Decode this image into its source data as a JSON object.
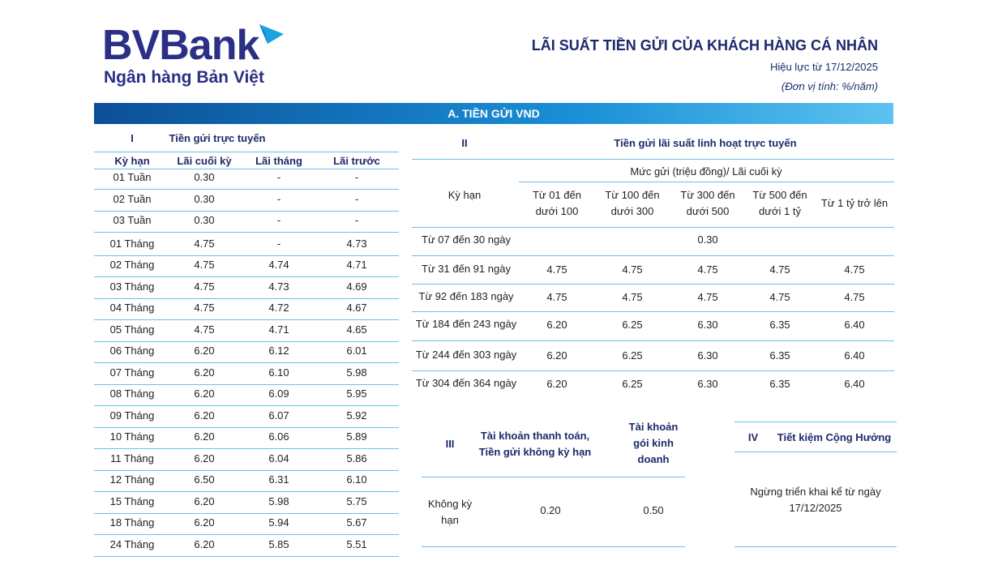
{
  "header": {
    "brand": "BVBank",
    "tagline": "Ngân hàng Bản Việt",
    "title": "LÃI SUẤT TIỀN GỬI CỦA KHÁCH HÀNG CÁ NHÂN",
    "effective": "Hiệu lực từ 17/12/2025",
    "unit": "(Đơn vị tính: %/năm)"
  },
  "section": "A. TIỀN GỬI VND",
  "table_1": {
    "number": "I",
    "title": "Tiền gửi trực tuyến",
    "columns": [
      "Kỳ hạn",
      "Lãi cuối kỳ",
      "Lãi tháng",
      "Lãi trước"
    ],
    "rows": [
      [
        "01 Tuần",
        "0.30",
        "-",
        "-"
      ],
      [
        "02 Tuần",
        "0.30",
        "-",
        "-"
      ],
      [
        "03 Tuần",
        "0.30",
        "-",
        "-"
      ],
      [
        "01 Tháng",
        "4.75",
        "-",
        "4.73"
      ],
      [
        "02 Tháng",
        "4.75",
        "4.74",
        "4.71"
      ],
      [
        "03 Tháng",
        "4.75",
        "4.73",
        "4.69"
      ],
      [
        "04 Tháng",
        "4.75",
        "4.72",
        "4.67"
      ],
      [
        "05 Tháng",
        "4.75",
        "4.71",
        "4.65"
      ],
      [
        "06 Tháng",
        "6.20",
        "6.12",
        "6.01"
      ],
      [
        "07 Tháng",
        "6.20",
        "6.10",
        "5.98"
      ],
      [
        "08 Tháng",
        "6.20",
        "6.09",
        "5.95"
      ],
      [
        "09 Tháng",
        "6.20",
        "6.07",
        "5.92"
      ],
      [
        "10 Tháng",
        "6.20",
        "6.06",
        "5.89"
      ],
      [
        "11 Tháng",
        "6.20",
        "6.04",
        "5.86"
      ],
      [
        "12 Tháng",
        "6.50",
        "6.31",
        "6.10"
      ],
      [
        "15 Tháng",
        "6.20",
        "5.98",
        "5.75"
      ],
      [
        "18 Tháng",
        "6.20",
        "5.94",
        "5.67"
      ],
      [
        "24 Tháng",
        "6.20",
        "5.85",
        "5.51"
      ]
    ]
  },
  "table_2": {
    "number": "II",
    "title": "Tiền gửi lãi suất linh hoạt trực tuyến",
    "term_header": "Kỳ hạn",
    "group_header": "Mức gửi (triệu đồng)/ Lãi cuối kỳ",
    "columns": [
      "Từ 01 đến dưới 100",
      "Từ 100 đến dưới 300",
      "Từ 300 đến dưới 500",
      "Từ 500 đến dưới 1 tỷ",
      "Từ 1 tỷ trở lên"
    ],
    "rows": [
      [
        "Từ 07 đến 30 ngày",
        "0.30"
      ],
      [
        "Từ 31 đến 91 ngày",
        "4.75",
        "4.75",
        "4.75",
        "4.75",
        "4.75"
      ],
      [
        "Từ 92 đến 183 ngày",
        "4.75",
        "4.75",
        "4.75",
        "4.75",
        "4.75"
      ],
      [
        "Từ 184 đến 243 ngày",
        "6.20",
        "6.25",
        "6.30",
        "6.35",
        "6.40"
      ],
      [
        "Từ 244 đến 303 ngày",
        "6.20",
        "6.25",
        "6.30",
        "6.35",
        "6.40"
      ],
      [
        "Từ 304 đến 364 ngày",
        "6.20",
        "6.25",
        "6.30",
        "6.35",
        "6.40"
      ]
    ]
  },
  "table_3": {
    "number": "III",
    "columns": [
      "Tài khoản thanh toán, Tiền gửi không kỳ hạn",
      "Tài khoản gói kinh doanh"
    ],
    "rows": [
      [
        "Không kỳ hạn",
        "0.20",
        "0.50"
      ]
    ]
  },
  "table_4": {
    "number": "IV",
    "title": "Tiết kiệm Cộng Hưởng",
    "note": "Ngừng triển khai kể từ ngày 17/12/2025"
  }
}
